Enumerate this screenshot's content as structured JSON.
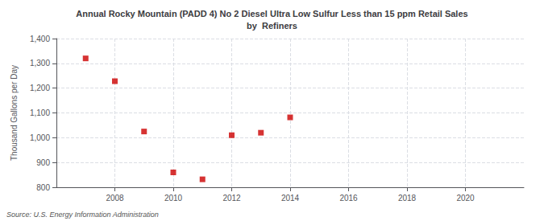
{
  "chart_data": {
    "type": "scatter",
    "title": "Annual Rocky Mountain (PADD 4) No 2 Diesel Ultra Low Sulfur Less than 15 ppm Retail Sales\nby  Refiners",
    "ylabel": "Thousand Gallons per Day",
    "annotation": "Source: U.S. Energy Information Administration",
    "x": [
      2007,
      2008,
      2009,
      2010,
      2011,
      2012,
      2013,
      2014
    ],
    "values": [
      1320,
      1228,
      1025,
      860,
      832,
      1010,
      1020,
      1082
    ],
    "color": "#cc0000",
    "marker": "square",
    "xlim": [
      2006,
      2022
    ],
    "ylim": [
      800,
      1400
    ],
    "xticks": [
      2008,
      2010,
      2012,
      2014,
      2016,
      2018,
      2020
    ],
    "yticks": [
      800,
      900,
      {
        "value": 1000,
        "label": "1,000"
      },
      {
        "value": 1100,
        "label": "1,100"
      },
      {
        "value": 1200,
        "label": "1,200"
      },
      {
        "value": 1300,
        "label": "1,300"
      },
      {
        "value": 1400,
        "label": "1,400"
      }
    ],
    "grid": true
  }
}
